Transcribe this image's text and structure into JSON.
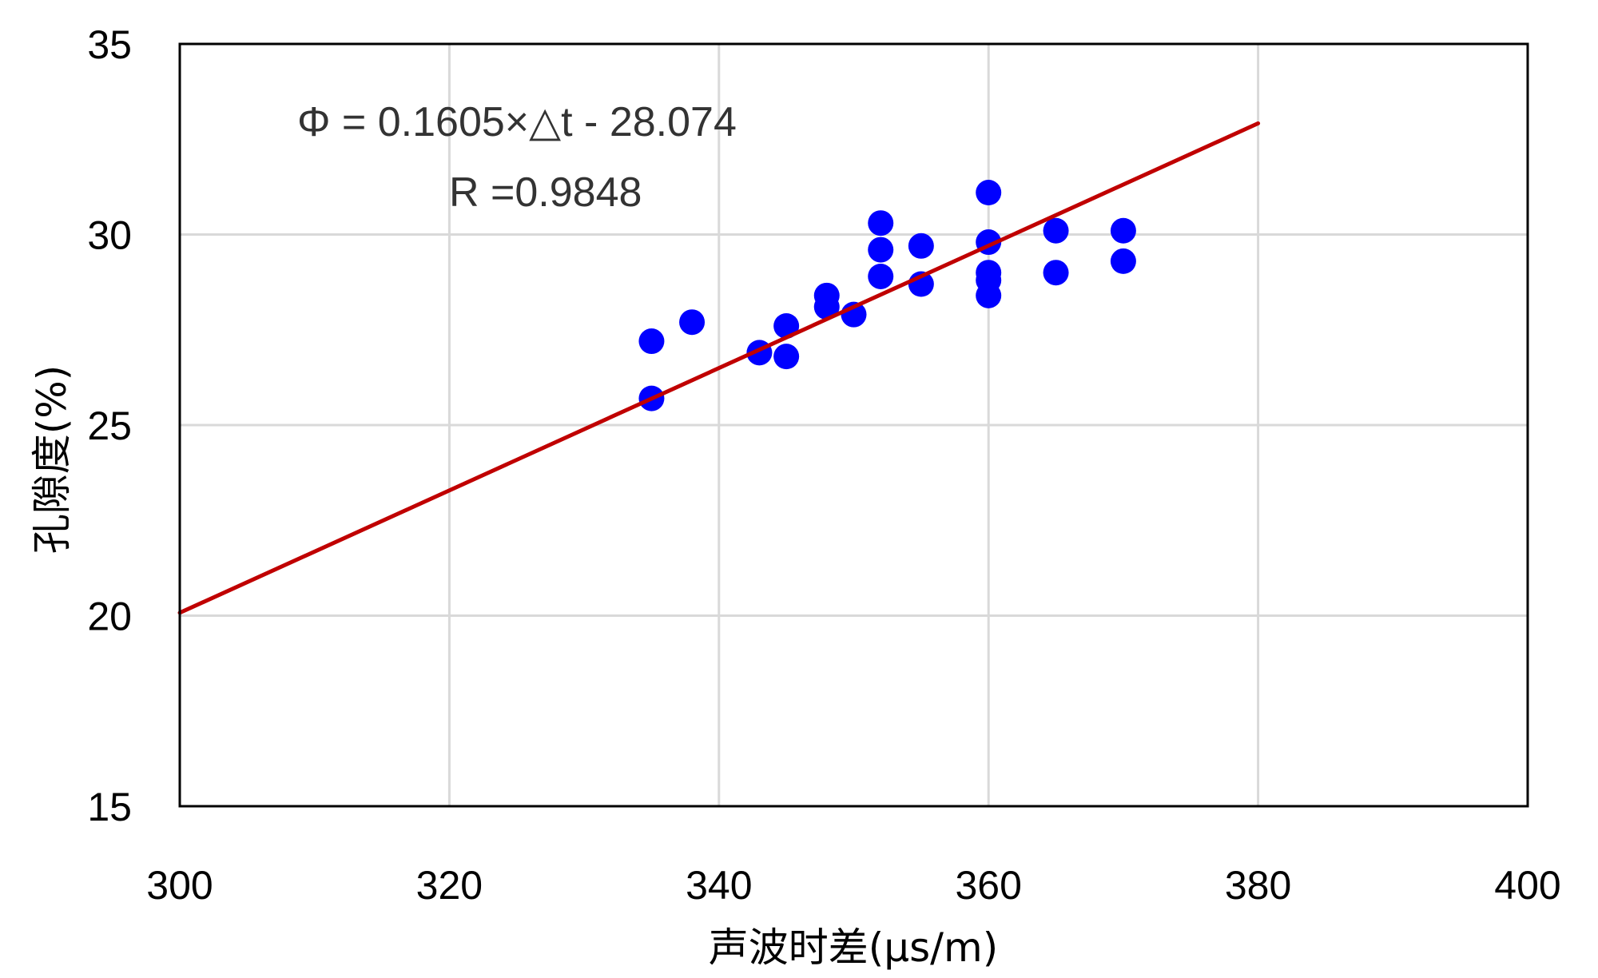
{
  "chart_data": {
    "type": "scatter",
    "title": "",
    "xlabel": "声波时差(μs/m)",
    "ylabel": "孔隙度(%)",
    "xlim": [
      300,
      400
    ],
    "ylim": [
      15,
      35
    ],
    "x_ticks": [
      "300",
      "320",
      "340",
      "360",
      "380",
      "400"
    ],
    "y_ticks": [
      "15",
      "20",
      "25",
      "30",
      "35"
    ],
    "grid": true,
    "legend": "none",
    "series": [
      {
        "kind": "scatter",
        "color": "#0000ff",
        "points": [
          [
            335,
            27.2
          ],
          [
            335,
            25.7
          ],
          [
            338,
            27.7
          ],
          [
            343,
            26.9
          ],
          [
            345,
            27.6
          ],
          [
            345,
            26.8
          ],
          [
            348,
            28.4
          ],
          [
            348,
            28.1
          ],
          [
            350,
            27.9
          ],
          [
            352,
            30.3
          ],
          [
            352,
            29.6
          ],
          [
            352,
            28.9
          ],
          [
            355,
            29.7
          ],
          [
            355,
            28.7
          ],
          [
            360,
            31.1
          ],
          [
            360,
            29.8
          ],
          [
            360,
            29.0
          ],
          [
            360,
            28.8
          ],
          [
            360,
            28.4
          ],
          [
            365,
            30.1
          ],
          [
            365,
            29.0
          ],
          [
            370,
            30.1
          ],
          [
            370,
            29.3
          ]
        ]
      },
      {
        "kind": "line",
        "color": "#c00000",
        "x": [
          300,
          380
        ],
        "y": [
          20.076,
          32.916
        ]
      }
    ],
    "annotations": [
      "Φ = 0.1605×△t - 28.074",
      "R =0.9848"
    ]
  }
}
